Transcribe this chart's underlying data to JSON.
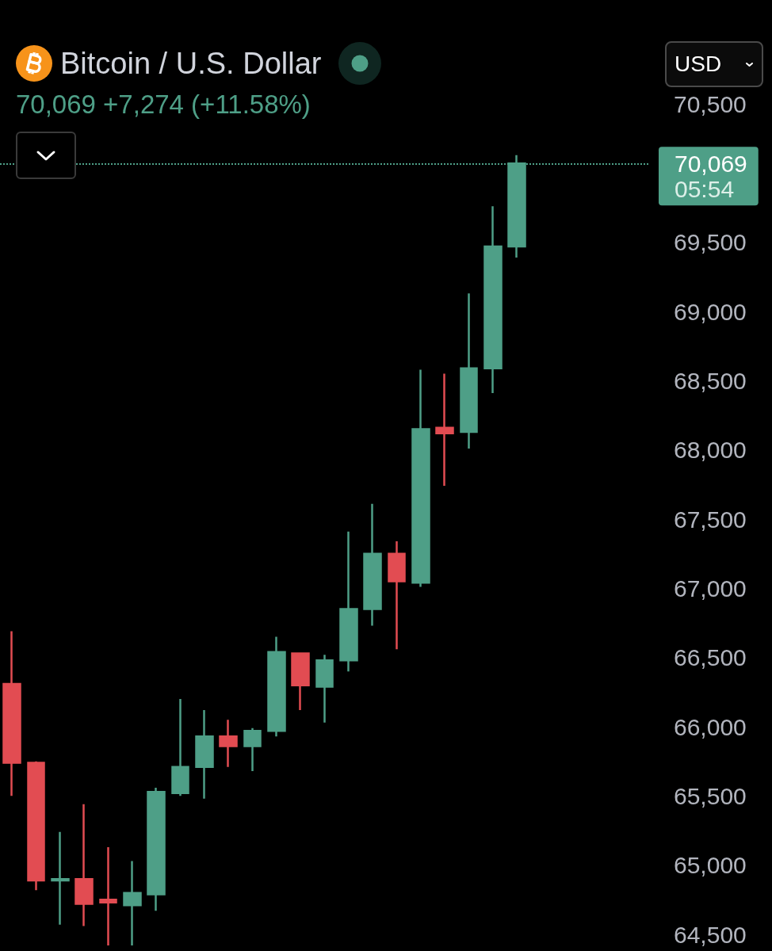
{
  "chart_data": {
    "type": "candlestick",
    "title": "Bitcoin / U.S. Dollar",
    "subtitle": "70,069 +7,274 (+11.58%)",
    "categories": [
      null,
      null,
      null,
      null,
      null,
      null,
      null,
      null,
      null,
      null,
      null,
      null,
      null,
      null,
      null,
      null,
      null,
      null,
      null,
      null,
      null,
      null,
      null,
      null,
      null,
      null,
      null
    ],
    "ohlc": [
      [
        66310,
        66690,
        65500,
        65740
      ],
      [
        65740,
        65750,
        64820,
        64890
      ],
      [
        64890,
        65240,
        64570,
        64900
      ],
      [
        64900,
        65440,
        64560,
        64720
      ],
      [
        64750,
        65130,
        64420,
        64730
      ],
      [
        64710,
        65030,
        64420,
        64800
      ],
      [
        64790,
        65560,
        64670,
        65530
      ],
      [
        65520,
        66200,
        65500,
        65710
      ],
      [
        65710,
        66120,
        65480,
        65930
      ],
      [
        65930,
        66050,
        65710,
        65860
      ],
      [
        65860,
        65990,
        65680,
        65970
      ],
      [
        65970,
        66650,
        65930,
        66540
      ],
      [
        66530,
        66530,
        66120,
        66300
      ],
      [
        66290,
        66520,
        66030,
        66480
      ],
      [
        66480,
        67410,
        66400,
        66850
      ],
      [
        66850,
        67610,
        66730,
        67250
      ],
      [
        67250,
        67340,
        66560,
        67050
      ],
      [
        67040,
        68580,
        67010,
        68150
      ],
      [
        68160,
        68550,
        67740,
        68120
      ],
      [
        68130,
        69130,
        68010,
        68590
      ],
      [
        68590,
        69760,
        68410,
        69470
      ],
      [
        69470,
        70130,
        69390,
        70069
      ],
      null,
      null,
      null,
      null,
      null
    ],
    "colors": [
      "#e24c52",
      "#e24c52",
      "#4e9f87",
      "#e24c52",
      "#e24c52",
      "#4e9f87",
      "#4e9f87",
      "#4e9f87",
      "#4e9f87",
      "#e24c52",
      "#4e9f87",
      "#4e9f87",
      "#e24c52",
      "#4e9f87",
      "#4e9f87",
      "#4e9f87",
      "#e24c52",
      "#4e9f87",
      "#e24c52",
      "#4e9f87",
      "#4e9f87",
      "#4e9f87",
      null,
      null,
      null,
      null,
      null
    ],
    "ylim": [
      64380,
      71250
    ],
    "yticks": [
      {
        "value": 64500,
        "label": "64,500"
      },
      {
        "value": 65000,
        "label": "65,000"
      },
      {
        "value": 65500,
        "label": "65,500"
      },
      {
        "value": 66000,
        "label": "66,000"
      },
      {
        "value": 66500,
        "label": "66,500"
      },
      {
        "value": 67000,
        "label": "67,000"
      },
      {
        "value": 67500,
        "label": "67,500"
      },
      {
        "value": 68000,
        "label": "68,000"
      },
      {
        "value": 68500,
        "label": "68,500"
      },
      {
        "value": 69000,
        "label": "69,000"
      },
      {
        "value": 69500,
        "label": "69,500"
      },
      {
        "value": 70500,
        "label": "70,500"
      }
    ],
    "tick_labels": "y",
    "grid": false,
    "ref_lines": [
      {
        "axis": "y",
        "value": 70069,
        "label": "70,069",
        "color": "#4e9f87",
        "line_style": "dotted"
      }
    ],
    "annotations": [
      "05:54",
      "USD"
    ]
  }
}
